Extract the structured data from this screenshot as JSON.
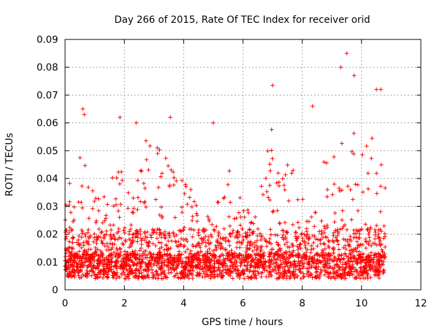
{
  "chart_data": {
    "type": "scatter",
    "title": "Day 266 of 2015, Rate Of TEC Index for receiver orid",
    "xlabel": "GPS time / hours",
    "ylabel": "ROTI / TECUs",
    "xlim": [
      0,
      12
    ],
    "ylim": [
      0,
      0.09
    ],
    "xticks": [
      "0",
      "2",
      "4",
      "6",
      "8",
      "10",
      "12"
    ],
    "yticks": [
      "0",
      "0.01",
      "0.02",
      "0.03",
      "0.04",
      "0.05",
      "0.06",
      "0.07",
      "0.08",
      "0.09"
    ],
    "grid": true,
    "marker": "+",
    "series_color": "#ff0000",
    "x_range_of_data": [
      0,
      10.8
    ],
    "notable_points": [
      {
        "x": 0.6,
        "y": 0.065
      },
      {
        "x": 0.65,
        "y": 0.063
      },
      {
        "x": 1.85,
        "y": 0.062
      },
      {
        "x": 2.4,
        "y": 0.06
      },
      {
        "x": 3.55,
        "y": 0.062
      },
      {
        "x": 5.0,
        "y": 0.06
      },
      {
        "x": 7.0,
        "y": 0.0735
      },
      {
        "x": 8.35,
        "y": 0.066
      },
      {
        "x": 9.3,
        "y": 0.08
      },
      {
        "x": 9.5,
        "y": 0.085
      },
      {
        "x": 9.75,
        "y": 0.077
      },
      {
        "x": 10.5,
        "y": 0.072
      },
      {
        "x": 10.65,
        "y": 0.072
      }
    ],
    "envelope_x": [
      0,
      0.5,
      1.0,
      1.5,
      2.0,
      2.5,
      3.0,
      3.5,
      4.0,
      4.5,
      5.0,
      5.5,
      6.0,
      6.5,
      7.0,
      7.5,
      8.0,
      8.5,
      9.0,
      9.5,
      10.0,
      10.5,
      10.8
    ],
    "envelope_upper": [
      0.035,
      0.05,
      0.035,
      0.04,
      0.048,
      0.055,
      0.053,
      0.048,
      0.045,
      0.03,
      0.028,
      0.048,
      0.03,
      0.035,
      0.06,
      0.05,
      0.032,
      0.048,
      0.045,
      0.065,
      0.05,
      0.06,
      0.045
    ],
    "baseline_lower": 0.004
  }
}
